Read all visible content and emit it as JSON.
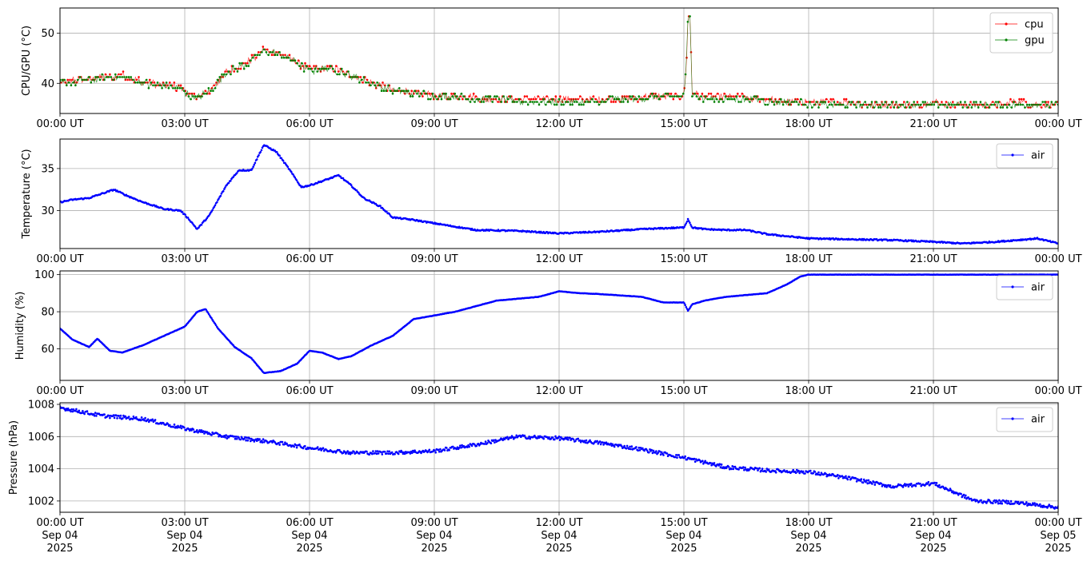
{
  "chart_data": [
    {
      "type": "scatter",
      "ylabel": "CPU/GPU (°C)",
      "ylim": [
        34,
        55
      ],
      "yticks": [
        40,
        50
      ],
      "xlim": [
        0,
        24
      ],
      "xtick_labels": [
        "00:00 UT",
        "03:00 UT",
        "06:00 UT",
        "09:00 UT",
        "12:00 UT",
        "15:00 UT",
        "18:00 UT",
        "21:00 UT",
        "00:00 UT"
      ],
      "grid": true,
      "legend_position": "top-right",
      "series": [
        {
          "name": "cpu",
          "color": "#ff0000",
          "x": [
            0,
            0.5,
            1.0,
            1.5,
            2.0,
            2.5,
            2.9,
            3.1,
            3.3,
            3.6,
            4.0,
            4.5,
            4.9,
            5.2,
            5.5,
            6.0,
            6.5,
            7.0,
            7.5,
            8.0,
            8.5,
            9.0,
            10.0,
            11.0,
            12.0,
            13.0,
            14.0,
            14.8,
            15.0,
            15.05,
            15.1,
            15.15,
            15.2,
            15.5,
            16.0,
            16.5,
            17.0,
            18.0,
            19.0,
            20.0,
            21.0,
            22.0,
            23.0,
            24.0
          ],
          "y": [
            40,
            40.5,
            41,
            41.5,
            40,
            39.5,
            39,
            37.5,
            37,
            38.5,
            42,
            44,
            46.5,
            46,
            45,
            42.5,
            43,
            41.5,
            40,
            38.5,
            38,
            37.5,
            37,
            36.5,
            36.5,
            36.5,
            37,
            37.5,
            37.5,
            42,
            53,
            53.5,
            38,
            37,
            37,
            37,
            36.5,
            36,
            36,
            35.5,
            36,
            35.5,
            36,
            35.5
          ]
        },
        {
          "name": "gpu",
          "color": "#008000",
          "x": [
            0,
            0.5,
            1.0,
            1.5,
            2.0,
            2.5,
            2.9,
            3.1,
            3.3,
            3.6,
            4.0,
            4.5,
            4.9,
            5.2,
            5.5,
            6.0,
            6.5,
            7.0,
            7.5,
            8.0,
            8.5,
            9.0,
            10.0,
            11.0,
            12.0,
            13.0,
            14.0,
            14.8,
            15.0,
            15.05,
            15.1,
            15.15,
            15.2,
            15.5,
            16.0,
            16.5,
            17.0,
            18.0,
            19.0,
            20.0,
            21.0,
            22.0,
            23.0,
            24.0
          ],
          "y": [
            40,
            40.5,
            41,
            41.5,
            40,
            39.5,
            39,
            37.5,
            37,
            38.5,
            42,
            44,
            46.5,
            46,
            45,
            42.5,
            43,
            41.5,
            40,
            38.5,
            38,
            37.5,
            37,
            36.5,
            36.5,
            36.5,
            37,
            37.5,
            37.5,
            42,
            53,
            53.5,
            38,
            37,
            37,
            37,
            36.5,
            36,
            36,
            35.5,
            36,
            35.5,
            36,
            35.5
          ]
        }
      ]
    },
    {
      "type": "scatter",
      "ylabel": "Temperature (°C)",
      "ylim": [
        25.5,
        38.5
      ],
      "yticks": [
        30,
        35
      ],
      "xlim": [
        0,
        24
      ],
      "xtick_labels": [
        "00:00 UT",
        "03:00 UT",
        "06:00 UT",
        "09:00 UT",
        "12:00 UT",
        "15:00 UT",
        "18:00 UT",
        "21:00 UT",
        "00:00 UT"
      ],
      "grid": true,
      "legend_position": "top-right",
      "series": [
        {
          "name": "air",
          "color": "#0000ff",
          "x": [
            0,
            0.3,
            0.7,
            1.0,
            1.3,
            1.6,
            2.0,
            2.5,
            2.9,
            3.1,
            3.3,
            3.6,
            4.0,
            4.3,
            4.6,
            4.9,
            5.2,
            5.5,
            5.8,
            6.0,
            6.3,
            6.7,
            7.0,
            7.3,
            7.7,
            8.0,
            8.5,
            9.0,
            10.0,
            11.0,
            12.0,
            13.0,
            14.0,
            15.0,
            15.1,
            15.2,
            15.5,
            16.0,
            16.5,
            17.0,
            18.0,
            19.0,
            20.0,
            21.0,
            21.7,
            22.5,
            23.0,
            23.5,
            24.0
          ],
          "y": [
            31,
            31.3,
            31.5,
            32,
            32.5,
            31.8,
            31,
            30.2,
            30,
            29,
            27.8,
            29.5,
            33,
            34.8,
            34.8,
            37.8,
            37,
            35,
            32.8,
            33,
            33.5,
            34.2,
            33,
            31.5,
            30.5,
            29.2,
            28.9,
            28.5,
            27.7,
            27.6,
            27.3,
            27.5,
            27.8,
            28,
            29,
            28,
            27.8,
            27.7,
            27.7,
            27.2,
            26.7,
            26.6,
            26.5,
            26.3,
            26.1,
            26.3,
            26.5,
            26.7,
            26.1
          ]
        }
      ]
    },
    {
      "type": "scatter",
      "ylabel": "Humidity (%)",
      "ylim": [
        43,
        102
      ],
      "yticks": [
        60,
        80,
        100
      ],
      "xlim": [
        0,
        24
      ],
      "xtick_labels": [
        "00:00 UT",
        "03:00 UT",
        "06:00 UT",
        "09:00 UT",
        "12:00 UT",
        "15:00 UT",
        "18:00 UT",
        "21:00 UT",
        "00:00 UT"
      ],
      "grid": true,
      "legend_position": "top-right",
      "series": [
        {
          "name": "air",
          "color": "#0000ff",
          "x": [
            0,
            0.3,
            0.6,
            0.7,
            0.9,
            1.2,
            1.5,
            2.0,
            2.5,
            3.0,
            3.3,
            3.5,
            3.8,
            4.2,
            4.6,
            4.9,
            5.3,
            5.7,
            6.0,
            6.3,
            6.7,
            7.0,
            7.5,
            8.0,
            8.5,
            9.0,
            9.5,
            10.0,
            10.5,
            11.0,
            11.5,
            12.0,
            12.5,
            13.0,
            14.0,
            14.5,
            15.0,
            15.1,
            15.2,
            15.5,
            16.0,
            16.5,
            17.0,
            17.5,
            17.8,
            18.0,
            19.0,
            20.0,
            21.0,
            22.0,
            23.0,
            24.0
          ],
          "y": [
            71,
            65,
            62,
            61,
            65.5,
            59,
            58,
            62,
            67,
            72,
            80,
            81.5,
            71,
            61,
            55,
            47,
            48,
            52,
            59,
            58,
            54.5,
            56,
            62,
            67,
            76,
            78,
            80,
            83,
            86,
            87,
            88,
            91,
            90,
            89.5,
            88,
            85,
            85,
            80.5,
            84,
            86,
            88,
            89,
            90,
            95,
            99,
            100,
            100,
            100,
            100,
            100,
            100,
            100
          ]
        }
      ]
    },
    {
      "type": "scatter",
      "ylabel": "Pressure (hPa)",
      "ylim": [
        1001.3,
        1008.1
      ],
      "yticks": [
        1002,
        1004,
        1006,
        1008
      ],
      "xlim": [
        0,
        24
      ],
      "xtick_labels": [
        [
          "00:00 UT",
          "Sep 04",
          "2025"
        ],
        [
          "03:00 UT",
          "Sep 04",
          "2025"
        ],
        [
          "06:00 UT",
          "Sep 04",
          "2025"
        ],
        [
          "09:00 UT",
          "Sep 04",
          "2025"
        ],
        [
          "12:00 UT",
          "Sep 04",
          "2025"
        ],
        [
          "15:00 UT",
          "Sep 04",
          "2025"
        ],
        [
          "18:00 UT",
          "Sep 04",
          "2025"
        ],
        [
          "21:00 UT",
          "Sep 04",
          "2025"
        ],
        [
          "00:00 UT",
          "Sep 05",
          "2025"
        ]
      ],
      "grid": true,
      "legend_position": "top-right",
      "series": [
        {
          "name": "air",
          "color": "#0000ff",
          "x": [
            0,
            1.0,
            2.0,
            3.0,
            4.0,
            5.0,
            6.0,
            7.0,
            8.0,
            9.0,
            10.0,
            11.0,
            12.0,
            13.0,
            14.0,
            15.0,
            16.0,
            17.0,
            18.0,
            19.0,
            20.0,
            21.0,
            22.0,
            23.0,
            24.0
          ],
          "y": [
            1007.8,
            1007.3,
            1007.1,
            1006.5,
            1006.0,
            1005.7,
            1005.3,
            1005.0,
            1005.0,
            1005.1,
            1005.5,
            1006.0,
            1005.9,
            1005.6,
            1005.2,
            1004.7,
            1004.1,
            1003.9,
            1003.8,
            1003.4,
            1002.9,
            1003.1,
            1002.0,
            1001.9,
            1001.6
          ]
        }
      ]
    }
  ]
}
